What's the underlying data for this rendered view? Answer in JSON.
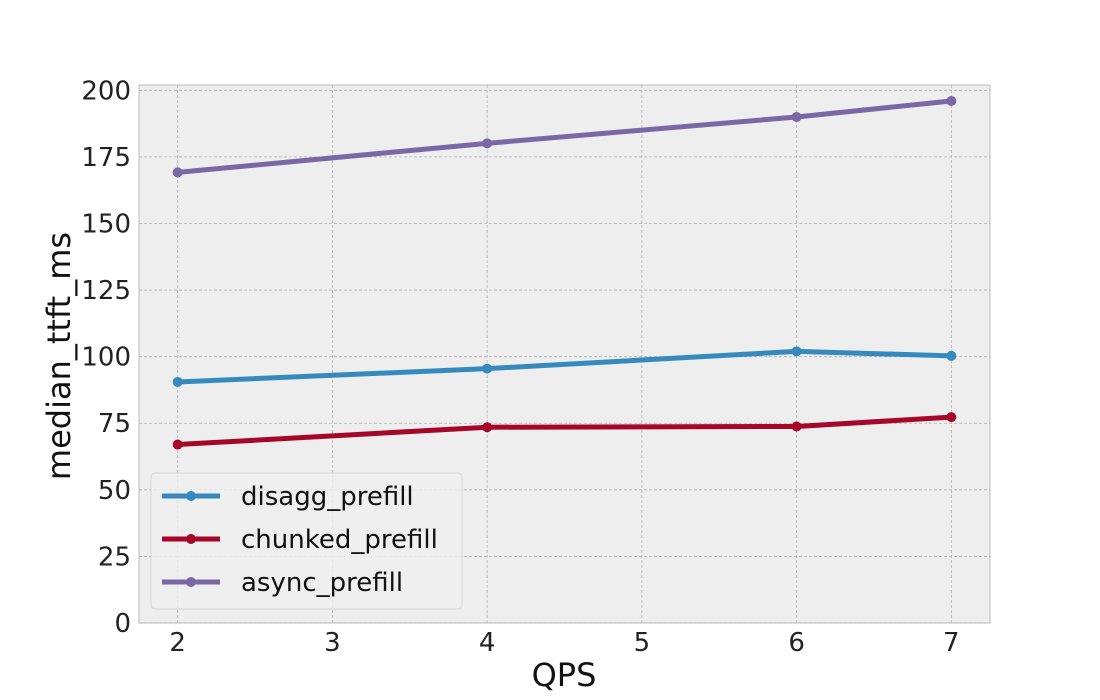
{
  "chart_data": {
    "type": "line",
    "title": "",
    "xlabel": "QPS",
    "ylabel": "median_ttft_ms",
    "x": [
      2,
      4,
      6,
      7
    ],
    "xticks": [
      2,
      3,
      4,
      5,
      6,
      7
    ],
    "xlim": [
      1.75,
      7.25
    ],
    "yticks": [
      0,
      25,
      50,
      75,
      100,
      125,
      150,
      175,
      200
    ],
    "ylim": [
      0,
      202
    ],
    "grid": true,
    "legend_position": "lower-left",
    "series": [
      {
        "name": "disagg_prefill",
        "color": "#348abd",
        "values": [
          90.5,
          95.5,
          102,
          100.3
        ]
      },
      {
        "name": "chunked_prefill",
        "color": "#a60628",
        "values": [
          67,
          73.5,
          73.8,
          77.3
        ]
      },
      {
        "name": "async_prefill",
        "color": "#7a68a6",
        "values": [
          169.2,
          180.1,
          190,
          196
        ]
      }
    ]
  }
}
